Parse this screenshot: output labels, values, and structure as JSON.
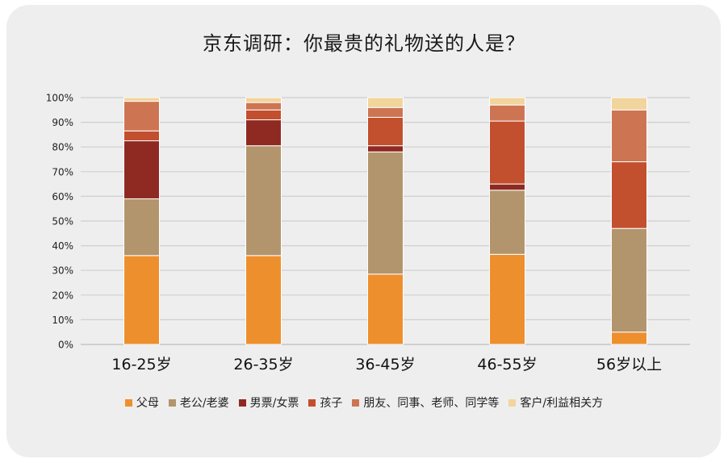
{
  "title": "京东调研：你最贵的礼物送的人是？",
  "chart_data": {
    "type": "bar",
    "stacked": true,
    "categories": [
      "16-25岁",
      "26-35岁",
      "36-45岁",
      "46-55岁",
      "56岁以上"
    ],
    "ylim": [
      0,
      100
    ],
    "yticks": [
      "0%",
      "10%",
      "20%",
      "30%",
      "40%",
      "50%",
      "60%",
      "70%",
      "80%",
      "90%",
      "100%"
    ],
    "grid": true,
    "legend_position": "bottom",
    "series": [
      {
        "name": "父母",
        "color": "#ee8f2e",
        "values": [
          36,
          36,
          28.5,
          36.5,
          5
        ]
      },
      {
        "name": "老公/老婆",
        "color": "#b3956d",
        "values": [
          23,
          44.5,
          49.5,
          26,
          42
        ]
      },
      {
        "name": "男票/女票",
        "color": "#8f2a23",
        "values": [
          23.5,
          10.5,
          2.5,
          2.5,
          0
        ]
      },
      {
        "name": "孩子",
        "color": "#c24f2e",
        "values": [
          4,
          4,
          11.5,
          25.5,
          27
        ]
      },
      {
        "name": "朋友、同事、老师、同学等",
        "color": "#cd7552",
        "values": [
          12,
          3,
          4,
          6.5,
          21
        ]
      },
      {
        "name": "客户/利益相关方",
        "color": "#f2d49d",
        "values": [
          1.5,
          2,
          4,
          3,
          5
        ]
      }
    ]
  }
}
